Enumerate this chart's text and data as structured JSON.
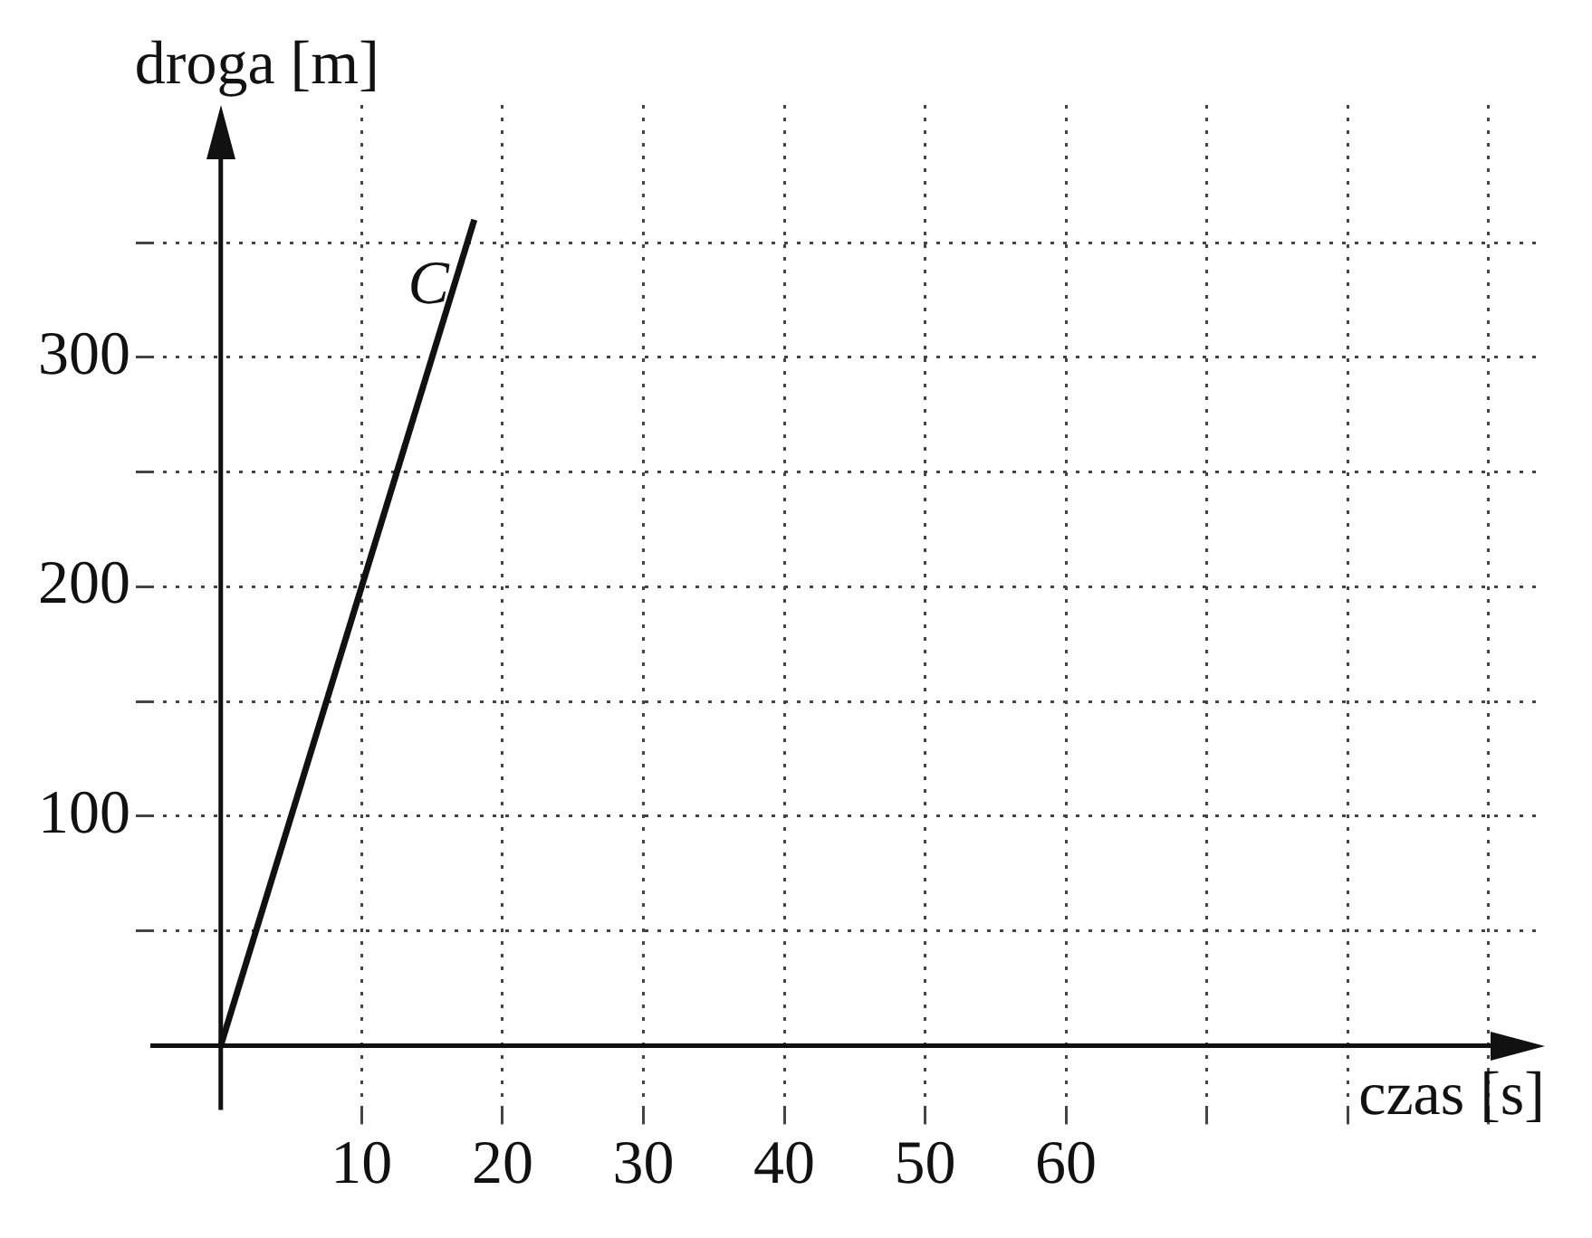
{
  "chart_data": {
    "type": "line",
    "xlabel": "czas [s]",
    "ylabel": "droga [m]",
    "series": [
      {
        "name": "C",
        "color": "#111111",
        "x": [
          0,
          18
        ],
        "values": [
          0,
          360
        ]
      }
    ],
    "xlim": [
      -5,
      94
    ],
    "ylim": [
      -28,
      410
    ],
    "xticks": [
      10,
      20,
      30,
      40,
      50,
      60,
      {
        "value": 70,
        "label": null
      },
      {
        "value": 80,
        "label": null
      },
      {
        "value": 90,
        "label": null
      }
    ],
    "yticks": [
      {
        "value": 50,
        "label": null
      },
      100,
      {
        "value": 150,
        "label": null
      },
      200,
      {
        "value": 250,
        "label": null
      },
      300,
      {
        "value": 350,
        "label": null
      }
    ],
    "grid": true,
    "marker": "none",
    "line_style": "solid"
  }
}
